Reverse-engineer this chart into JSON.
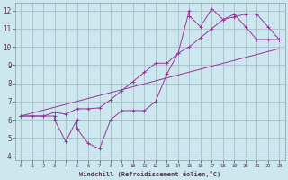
{
  "xlabel": "Windchill (Refroidissement éolien,°C)",
  "bg_color": "#cce8ee",
  "grid_color": "#aabbcc",
  "line_color": "#993399",
  "xlim": [
    -0.5,
    23.5
  ],
  "ylim": [
    3.8,
    12.4
  ],
  "xticks": [
    0,
    1,
    2,
    3,
    4,
    5,
    6,
    7,
    8,
    9,
    10,
    11,
    12,
    13,
    14,
    15,
    16,
    17,
    18,
    19,
    20,
    21,
    22,
    23
  ],
  "yticks": [
    4,
    5,
    6,
    7,
    8,
    9,
    10,
    11,
    12
  ],
  "line1_x": [
    0,
    1,
    2,
    3,
    3,
    4,
    5,
    5,
    6,
    7,
    8,
    9,
    10,
    11,
    12,
    13,
    14,
    15,
    15,
    16,
    17,
    18,
    19,
    20,
    21,
    22,
    23
  ],
  "line1_y": [
    6.2,
    6.2,
    6.2,
    6.2,
    6.0,
    4.8,
    6.0,
    5.5,
    4.7,
    4.4,
    6.0,
    6.5,
    6.5,
    6.5,
    7.0,
    8.5,
    9.65,
    12.0,
    11.7,
    11.1,
    12.1,
    11.5,
    11.8,
    11.1,
    10.4,
    10.4,
    10.4
  ],
  "line1_markers_x": [
    0,
    1,
    2,
    3,
    4,
    5,
    6,
    7,
    8,
    9,
    10,
    11,
    12,
    13,
    14,
    15,
    16,
    17,
    18,
    19,
    20,
    21,
    22,
    23
  ],
  "line1_markers_y": [
    6.2,
    6.2,
    6.2,
    6.0,
    4.8,
    5.5,
    4.7,
    4.4,
    6.0,
    6.5,
    6.5,
    6.5,
    7.0,
    8.5,
    9.65,
    12.0,
    11.1,
    12.1,
    11.5,
    11.8,
    11.1,
    10.4,
    10.4,
    10.4
  ],
  "line2_x": [
    0,
    2,
    3,
    4,
    5,
    6,
    7,
    8,
    9,
    10,
    11,
    12,
    13,
    14,
    15,
    16,
    17,
    18,
    19,
    20,
    21,
    22,
    23
  ],
  "line2_y": [
    6.2,
    6.2,
    6.4,
    6.3,
    6.6,
    6.6,
    6.65,
    7.1,
    7.6,
    8.1,
    8.6,
    9.1,
    9.1,
    9.65,
    10.0,
    10.5,
    11.0,
    11.5,
    11.65,
    11.8,
    11.8,
    11.1,
    10.4
  ],
  "line2_markers_x": [
    0,
    2,
    3,
    4,
    5,
    6,
    7,
    8,
    9,
    10,
    11,
    12,
    13,
    14,
    15,
    16,
    17,
    18,
    19,
    20,
    21,
    22,
    23
  ],
  "line2_markers_y": [
    6.2,
    6.2,
    6.4,
    6.3,
    6.6,
    6.6,
    6.65,
    7.1,
    7.6,
    8.1,
    8.6,
    9.1,
    9.1,
    9.65,
    10.0,
    10.5,
    11.0,
    11.5,
    11.65,
    11.8,
    11.8,
    11.1,
    10.4
  ],
  "line3_x": [
    0,
    23
  ],
  "line3_y": [
    6.2,
    9.9
  ]
}
